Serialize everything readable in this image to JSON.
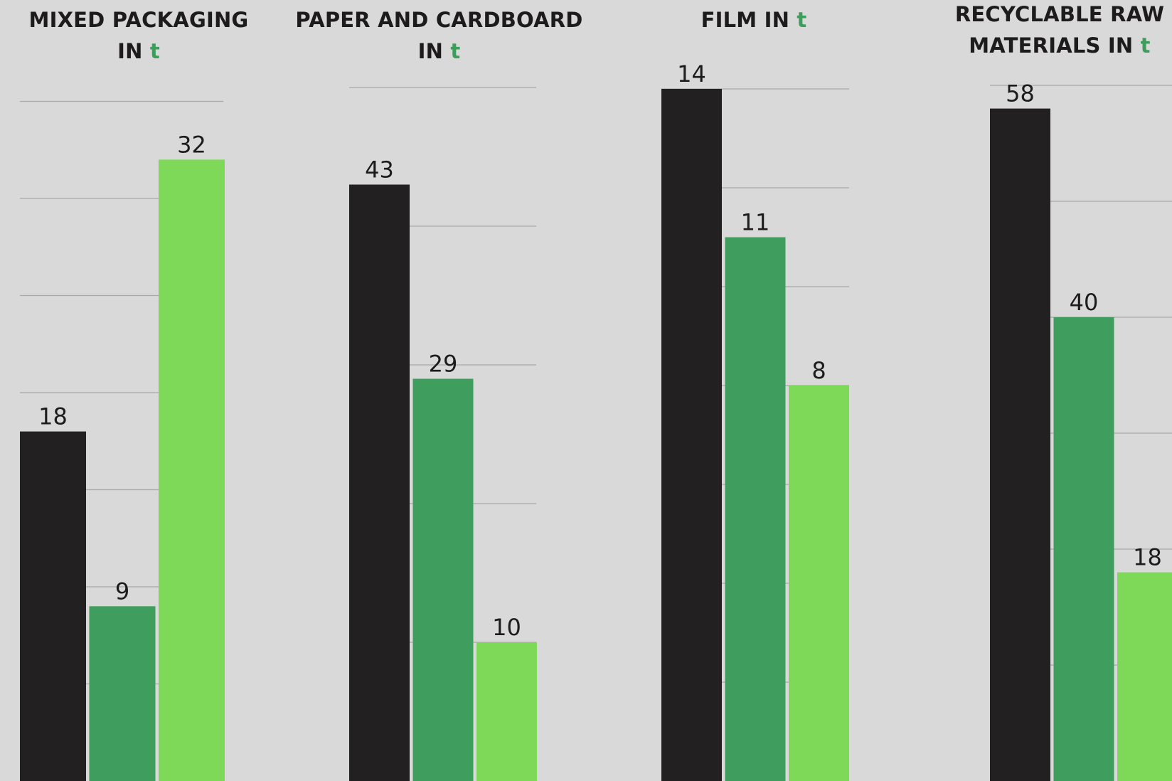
{
  "colors": {
    "background": "#d9d9d9",
    "series_1": "#232021",
    "series_2": "#3f9e5e",
    "series_3": "#7dd957",
    "gridline": "#a9a9a9",
    "unit_accent": "#3d9e5c",
    "label_text": "#1d1b1c"
  },
  "chart_data": [
    {
      "type": "bar",
      "title_line1": "MIXED PACKAGING",
      "title_line2_prefix": "IN ",
      "title_unit": "t",
      "categories": [
        "",
        "",
        ""
      ],
      "values": [
        18,
        9,
        32
      ],
      "data_labels": [
        "18",
        "9",
        "32"
      ],
      "ylim": [
        0,
        35
      ],
      "grid": true,
      "gridline_values": [
        5,
        10,
        15,
        20,
        25,
        30,
        35
      ],
      "legend": "none"
    },
    {
      "type": "bar",
      "title_line1": "PAPER AND CARDBOARD",
      "title_line2_prefix": "IN ",
      "title_unit": "t",
      "categories": [
        "",
        "",
        ""
      ],
      "values": [
        43,
        29,
        10
      ],
      "data_labels": [
        "43",
        "29",
        "10"
      ],
      "ylim": [
        0,
        50
      ],
      "grid": true,
      "gridline_values": [
        10,
        20,
        30,
        40,
        50
      ],
      "legend": "none"
    },
    {
      "type": "bar",
      "title_line1": "FILM IN ",
      "title_line2_prefix": "",
      "title_unit": "t",
      "categories": [
        "",
        "",
        ""
      ],
      "values": [
        14,
        11,
        8
      ],
      "data_labels": [
        "14",
        "11",
        "8"
      ],
      "ylim": [
        0,
        14
      ],
      "grid": true,
      "gridline_values": [
        2,
        4,
        6,
        8,
        10,
        12,
        14
      ],
      "legend": "none"
    },
    {
      "type": "bar",
      "title_line1": "RECYCLABLE RAW",
      "title_line2_prefix": "MATERIALS IN ",
      "title_unit": "t",
      "categories": [
        "",
        "",
        ""
      ],
      "values": [
        58,
        40,
        18
      ],
      "data_labels": [
        "58",
        "40",
        "18"
      ],
      "ylim": [
        0,
        60
      ],
      "grid": true,
      "gridline_values": [
        10,
        20,
        30,
        40,
        50,
        60
      ],
      "legend": "none"
    }
  ]
}
